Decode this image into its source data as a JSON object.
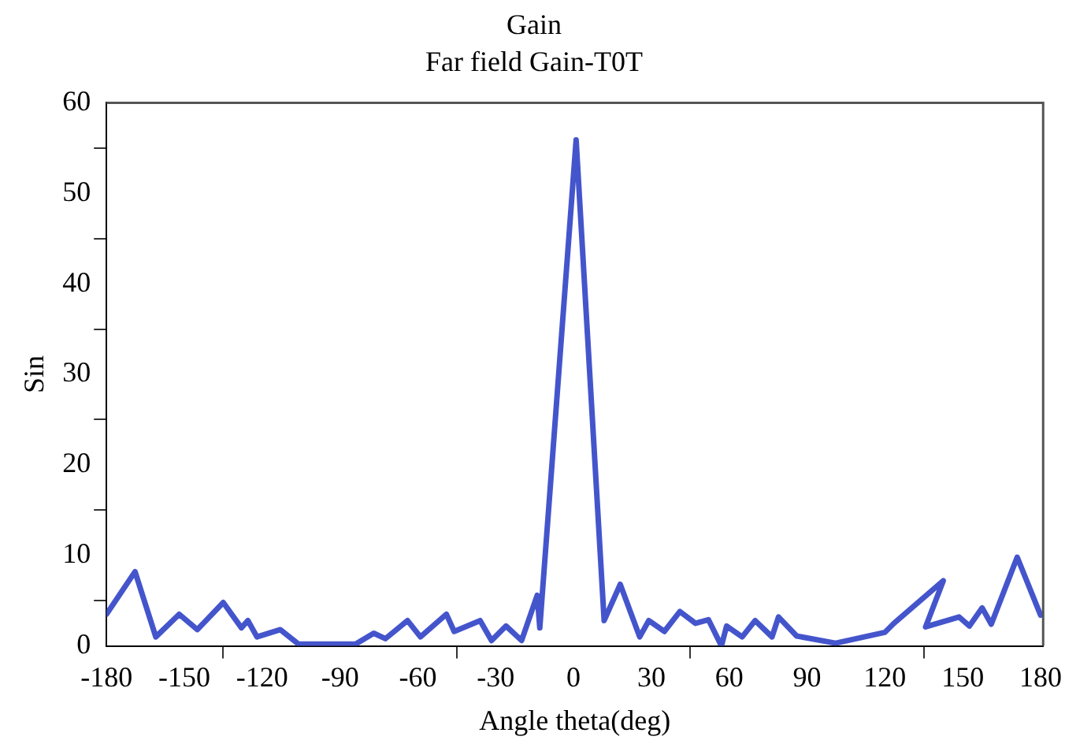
{
  "chart_data": {
    "type": "line",
    "title": "Gain",
    "subtitle": "Far field Gain-T0T",
    "xlabel": "Angle theta(deg)",
    "ylabel": "Sin",
    "xlim": [
      -180,
      181
    ],
    "ylim": [
      0,
      60
    ],
    "xticks": [
      -180,
      -150,
      {
        "value": -135,
        "label": null
      },
      -120,
      -90,
      -60,
      {
        "value": -45,
        "label": null
      },
      -30,
      0,
      30,
      {
        "value": 45,
        "label": null
      },
      60,
      90,
      120,
      {
        "value": 135,
        "label": null
      },
      150,
      180
    ],
    "yticks": [
      0,
      {
        "value": 5,
        "label": null
      },
      10,
      {
        "value": 15,
        "label": null
      },
      20,
      {
        "value": 25,
        "label": null
      },
      30,
      {
        "value": 35,
        "label": null
      },
      40,
      {
        "value": 45,
        "label": null
      },
      50,
      {
        "value": 55,
        "label": null
      },
      60
    ],
    "grid": false,
    "legend": false,
    "marker": "none",
    "line_style": "solid",
    "series": [
      {
        "color": "#4455cc",
        "x": [
          -180,
          -169,
          -161,
          -152,
          -145,
          -135,
          -128,
          -125.5,
          -122,
          -113,
          -106,
          -84,
          -77,
          -72.5,
          -64,
          -59,
          -49,
          -46,
          -36,
          -31.6,
          -26,
          -20,
          -14,
          -13,
          1,
          11.8,
          18,
          25.5,
          29,
          35,
          41,
          47,
          52,
          57,
          59,
          65,
          70,
          76.5,
          79,
          86,
          101,
          120,
          123.5,
          142.5,
          135.7,
          148.6,
          152.6,
          157.5,
          161,
          171,
          180
        ],
        "values": [
          3.5,
          8.2,
          1.0,
          3.5,
          1.8,
          4.8,
          2.0,
          2.8,
          1.0,
          1.8,
          0.2,
          0.2,
          1.4,
          0.8,
          2.8,
          1.0,
          3.5,
          1.6,
          2.8,
          0.6,
          2.2,
          0.6,
          5.6,
          2.0,
          55.9,
          2.8,
          6.8,
          1.0,
          2.8,
          1.6,
          3.8,
          2.5,
          2.9,
          0,
          2.2,
          1.0,
          2.8,
          1.0,
          3.2,
          1.1,
          0.3,
          1.5,
          2.5,
          7.2,
          2.1,
          3.2,
          2.2,
          4.2,
          2.4,
          9.8,
          3.4
        ]
      }
    ]
  }
}
